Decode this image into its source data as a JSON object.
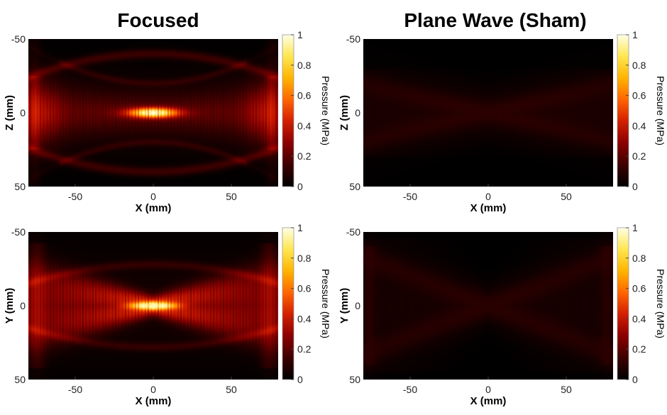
{
  "chart_data": {
    "type": "heatmap",
    "column_titles": [
      "Focused",
      "Plane Wave (Sham)"
    ],
    "colormap": "hot",
    "colormap_stops": [
      "#000000",
      "#3c0000",
      "#8a0000",
      "#d21e00",
      "#ff6400",
      "#ffb400",
      "#ffe650",
      "#ffffe6"
    ],
    "panels": [
      {
        "id": "focused-xz",
        "ylabel": "Z (mm)",
        "xlabel": "X (mm)",
        "xlim": [
          -80,
          80
        ],
        "ylim": [
          -50,
          50
        ],
        "xticks": [
          "-50",
          "0",
          "50"
        ],
        "yticks": [
          "-50",
          "0",
          "50"
        ],
        "colorbar": {
          "label": "Pressure (MPa)",
          "ticks": [
            "0",
            "0.2",
            "0.4",
            "0.6",
            "0.8",
            "1"
          ],
          "range": [
            0,
            1
          ]
        },
        "peak_pressure_mpa": 1.0,
        "focus": {
          "x": 0,
          "y": 0,
          "length_mm": 30,
          "width_mm": 5
        },
        "style": "focused-plane"
      },
      {
        "id": "sham-xz",
        "ylabel": "Z (mm)",
        "xlabel": "X (mm)",
        "xlim": [
          -80,
          80
        ],
        "ylim": [
          -50,
          50
        ],
        "xticks": [
          "-50",
          "0",
          "50"
        ],
        "yticks": [
          "-50",
          "0",
          "50"
        ],
        "colorbar": {
          "label": "Pressure (MPa)",
          "ticks": [
            "0",
            "0.2",
            "0.4",
            "0.6",
            "0.8",
            "1"
          ],
          "range": [
            0,
            1
          ]
        },
        "peak_pressure_mpa": 0.12,
        "style": "sham-plane"
      },
      {
        "id": "focused-xy",
        "ylabel": "Y (mm)",
        "xlabel": "X (mm)",
        "xlim": [
          -80,
          80
        ],
        "ylim": [
          -50,
          50
        ],
        "xticks": [
          "-50",
          "0",
          "50"
        ],
        "yticks": [
          "-50",
          "0",
          "50"
        ],
        "colorbar": {
          "label": "Pressure (MPa)",
          "ticks": [
            "0",
            "0.2",
            "0.4",
            "0.6",
            "0.8",
            "1"
          ],
          "range": [
            0,
            1
          ]
        },
        "peak_pressure_mpa": 0.95,
        "focus": {
          "x": 0,
          "y": 0,
          "length_mm": 25,
          "width_mm": 3
        },
        "style": "focused-cross"
      },
      {
        "id": "sham-xy",
        "ylabel": "Y (mm)",
        "xlabel": "X (mm)",
        "xlim": [
          -80,
          80
        ],
        "ylim": [
          -50,
          50
        ],
        "xticks": [
          "-50",
          "0",
          "50"
        ],
        "yticks": [
          "-50",
          "0",
          "50"
        ],
        "colorbar": {
          "label": "Pressure (MPa)",
          "ticks": [
            "0",
            "0.2",
            "0.4",
            "0.6",
            "0.8",
            "1"
          ],
          "range": [
            0,
            1
          ]
        },
        "peak_pressure_mpa": 0.1,
        "style": "sham-cross"
      }
    ]
  }
}
